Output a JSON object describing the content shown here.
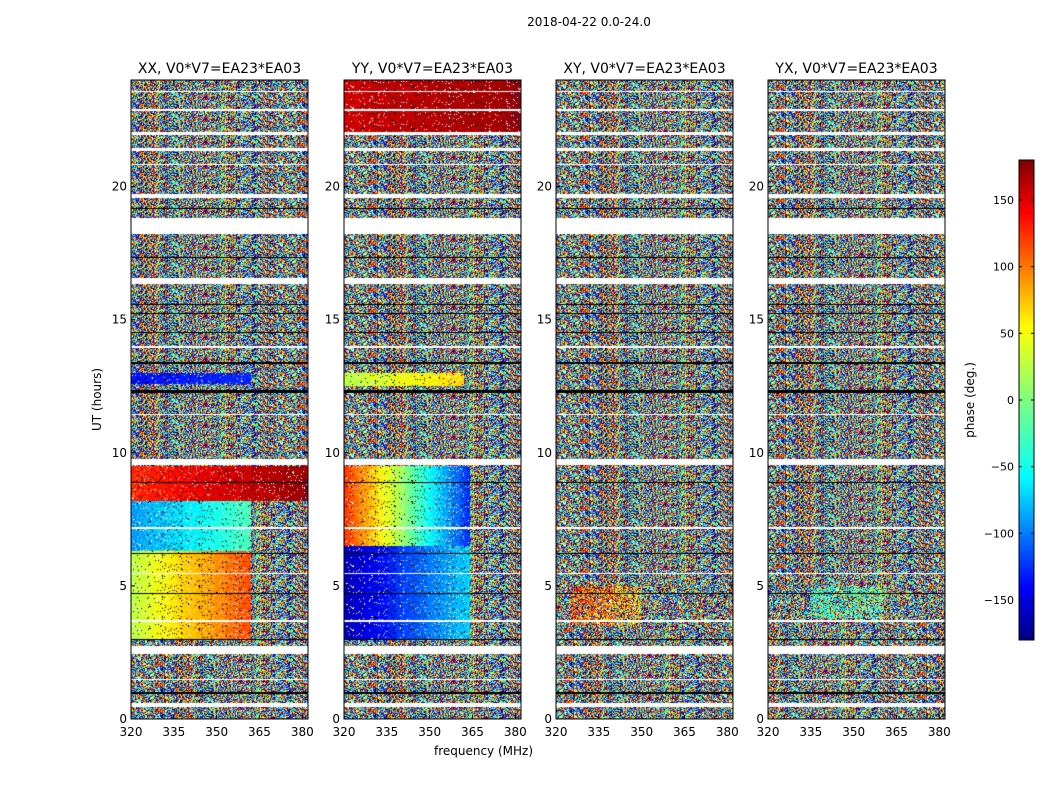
{
  "suptitle": "2018-04-22 0.0-24.0",
  "colors": {
    "frame": "#000000",
    "flag_white": "#ffffff",
    "flag_black": "#000000",
    "colormap": "jet"
  },
  "chart_data": [
    {
      "type": "heatmap",
      "title": "XX, V0*V7=EA23*EA03",
      "xlabel": "",
      "ylabel": "UT (hours)",
      "xlim": [
        320,
        382
      ],
      "ylim": [
        0,
        24
      ],
      "xticks": [
        320,
        335,
        350,
        365,
        380
      ],
      "yticks": [
        0,
        5,
        10,
        15,
        20
      ],
      "coherent_regions": [
        {
          "y": [
            3.0,
            6.3
          ],
          "x": [
            320,
            362
          ],
          "phase_start": 20,
          "phase_end": 110
        },
        {
          "y": [
            6.3,
            9.5
          ],
          "x": [
            320,
            362
          ],
          "phase_start": -80,
          "phase_end": -20
        },
        {
          "y": [
            8.2,
            9.5
          ],
          "x": [
            320,
            382
          ],
          "phase_start": 120,
          "phase_end": 170
        },
        {
          "y": [
            12.6,
            13.0
          ],
          "x": [
            320,
            362
          ],
          "phase_start": -130,
          "phase_end": -120
        }
      ]
    },
    {
      "type": "heatmap",
      "title": "YY, V0*V7=EA23*EA03",
      "xlabel": "frequency (MHz)",
      "ylabel": "",
      "xlim": [
        320,
        382
      ],
      "ylim": [
        0,
        24
      ],
      "xticks": [
        320,
        335,
        350,
        365,
        380
      ],
      "yticks": [
        0,
        5,
        10,
        15,
        20
      ],
      "coherent_regions": [
        {
          "y": [
            3.0,
            6.5
          ],
          "x": [
            320,
            364
          ],
          "phase_start": -160,
          "phase_end": -60
        },
        {
          "y": [
            6.5,
            9.5
          ],
          "x": [
            320,
            364
          ],
          "phase_start": 120,
          "phase_end": -120
        },
        {
          "y": [
            12.5,
            13.0
          ],
          "x": [
            320,
            362
          ],
          "phase_start": 20,
          "phase_end": 60
        },
        {
          "y": [
            22.0,
            24.0
          ],
          "x": [
            320,
            382
          ],
          "phase_start": 150,
          "phase_end": 170
        }
      ]
    },
    {
      "type": "heatmap",
      "title": "XY, V0*V7=EA23*EA03",
      "xlabel": "",
      "ylabel": "",
      "xlim": [
        320,
        382
      ],
      "ylim": [
        0,
        24
      ],
      "xticks": [
        320,
        335,
        350,
        365,
        380
      ],
      "yticks": [
        0,
        5,
        10,
        15,
        20
      ],
      "coherent_regions": [
        {
          "y": [
            3.5,
            5.0
          ],
          "x": [
            325,
            350
          ],
          "phase_start": 120,
          "phase_end": 60,
          "weak": true
        }
      ]
    },
    {
      "type": "heatmap",
      "title": "YX, V0*V7=EA23*EA03",
      "xlabel": "",
      "ylabel": "",
      "xlim": [
        320,
        382
      ],
      "ylim": [
        0,
        24
      ],
      "xticks": [
        320,
        335,
        350,
        365,
        380
      ],
      "yticks": [
        0,
        5,
        10,
        15,
        20
      ],
      "coherent_regions": [
        {
          "y": [
            3.8,
            5.0
          ],
          "x": [
            335,
            360
          ],
          "phase_start": -30,
          "phase_end": -10,
          "weak": true
        }
      ]
    }
  ],
  "colorbar": {
    "label": "phase (deg.)",
    "min": -180,
    "max": 180,
    "ticks": [
      -150,
      -100,
      -50,
      0,
      50,
      100,
      150
    ]
  },
  "flagged_ut": [
    [
      0.45,
      0.6
    ],
    [
      1.45,
      1.5
    ],
    [
      2.45,
      2.75
    ],
    [
      3.65,
      3.7
    ],
    [
      5.45,
      5.5
    ],
    [
      7.15,
      7.2
    ],
    [
      9.55,
      9.75
    ],
    [
      11.4,
      11.45
    ],
    [
      13.95,
      14.0
    ],
    [
      16.35,
      16.55
    ],
    [
      18.2,
      18.8
    ],
    [
      19.55,
      19.7
    ],
    [
      20.8,
      20.85
    ],
    [
      21.35,
      21.45
    ],
    [
      21.95,
      22.05
    ],
    [
      22.85,
      22.9
    ],
    [
      23.55,
      23.6
    ]
  ],
  "dead_ut": [
    [
      0.95,
      1.0
    ],
    [
      2.95,
      3.0
    ],
    [
      4.7,
      4.75
    ],
    [
      6.2,
      6.25
    ],
    [
      8.85,
      8.9
    ],
    [
      12.25,
      12.35
    ],
    [
      13.35,
      13.4
    ],
    [
      14.5,
      14.55
    ],
    [
      15.2,
      15.25
    ],
    [
      15.55,
      15.6
    ],
    [
      17.3,
      17.35
    ],
    [
      19.15,
      19.2
    ]
  ]
}
